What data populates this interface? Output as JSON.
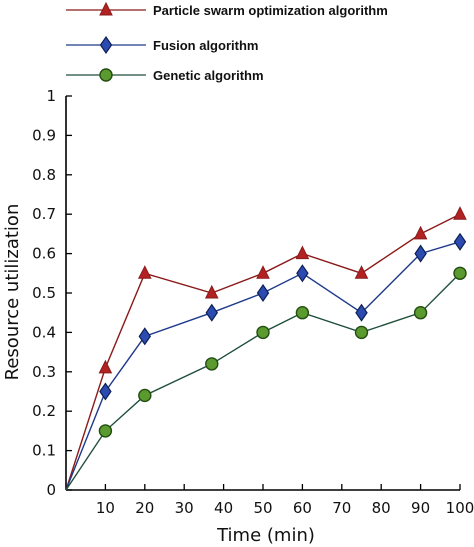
{
  "chart_data": {
    "type": "line",
    "xlabel": "Time (min)",
    "ylabel": "Resource utilization",
    "xlim": [
      0,
      100
    ],
    "ylim": [
      0,
      1
    ],
    "x": [
      0,
      10,
      20,
      37,
      50,
      60,
      75,
      90,
      100
    ],
    "x_ticks": [
      10,
      20,
      30,
      40,
      50,
      60,
      70,
      80,
      90,
      100
    ],
    "y_ticks": [
      0,
      0.1,
      0.2,
      0.3,
      0.4,
      0.5,
      0.6,
      0.7,
      0.8,
      0.9,
      1
    ],
    "x_tick_labels": [
      "10",
      "20",
      "30",
      "40",
      "50",
      "60",
      "70",
      "80",
      "90",
      "100"
    ],
    "y_tick_labels": [
      "0",
      "0.1",
      "0.2",
      "0.3",
      "0.4",
      "0.5",
      "0.6",
      "0.7",
      "0.8",
      "0.9",
      "1"
    ],
    "grid": false,
    "legend_position": "top-left",
    "series": [
      {
        "name": "Particle swarm optimization algorithm",
        "values": [
          0,
          0.31,
          0.55,
          0.5,
          0.55,
          0.6,
          0.55,
          0.65,
          0.7
        ],
        "color": "#8b1a1a",
        "marker": "triangle",
        "marker_fill": "#b22222"
      },
      {
        "name": "Fusion algorithm",
        "values": [
          0,
          0.25,
          0.39,
          0.45,
          0.5,
          0.55,
          0.45,
          0.6,
          0.63
        ],
        "color": "#1f3a8a",
        "marker": "diamond",
        "marker_fill": "#2b4bb0"
      },
      {
        "name": "Genetic algorithm",
        "values": [
          0,
          0.15,
          0.24,
          0.32,
          0.4,
          0.45,
          0.4,
          0.45,
          0.55
        ],
        "color": "#1f4f3a",
        "marker": "circle",
        "marker_fill": "#5a9a2f"
      }
    ]
  }
}
